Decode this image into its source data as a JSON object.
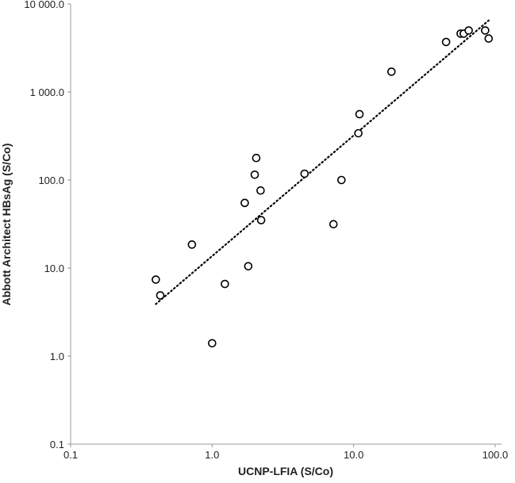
{
  "chart_data": {
    "type": "scatter",
    "title": "",
    "xlabel": "UCNP-LFIA (S/Co)",
    "ylabel": "Abbott Architect HBsAg (S/Co)",
    "x_scale": "log",
    "y_scale": "log",
    "xlim": [
      0.1,
      100.0
    ],
    "ylim": [
      0.1,
      10000.0
    ],
    "x_ticks": [
      0.1,
      1.0,
      10.0,
      100.0
    ],
    "x_tick_labels": [
      "0.1",
      "1.0",
      "10.0",
      "100.0"
    ],
    "y_ticks": [
      0.1,
      1.0,
      10.0,
      100.0,
      1000.0,
      10000.0
    ],
    "y_tick_labels": [
      "0.1",
      "1.0",
      "10.0",
      "100.0",
      "1 000.0",
      "10 000.0"
    ],
    "grid": false,
    "legend": "none",
    "marker": "open-circle",
    "marker_color": "#000000",
    "trendline": {
      "style": "dotted",
      "color": "#000000",
      "x": [
        0.4,
        90.0
      ],
      "y": [
        3.9,
        6500.0
      ]
    },
    "points": [
      {
        "x": 0.4,
        "y": 7.4
      },
      {
        "x": 0.43,
        "y": 4.9
      },
      {
        "x": 0.72,
        "y": 18.5
      },
      {
        "x": 1.0,
        "y": 1.4
      },
      {
        "x": 1.23,
        "y": 6.6
      },
      {
        "x": 1.7,
        "y": 55.0
      },
      {
        "x": 1.8,
        "y": 10.5
      },
      {
        "x": 2.0,
        "y": 115.0
      },
      {
        "x": 2.05,
        "y": 178.0
      },
      {
        "x": 2.2,
        "y": 76.0
      },
      {
        "x": 2.22,
        "y": 35.0
      },
      {
        "x": 4.5,
        "y": 118.0
      },
      {
        "x": 7.2,
        "y": 31.5
      },
      {
        "x": 8.2,
        "y": 100.0
      },
      {
        "x": 10.8,
        "y": 340.0
      },
      {
        "x": 11.0,
        "y": 560.0
      },
      {
        "x": 18.5,
        "y": 1700.0
      },
      {
        "x": 45.0,
        "y": 3700.0
      },
      {
        "x": 57.0,
        "y": 4600.0
      },
      {
        "x": 60.0,
        "y": 4600.0
      },
      {
        "x": 65.0,
        "y": 5000.0
      },
      {
        "x": 85.0,
        "y": 5000.0
      },
      {
        "x": 90.0,
        "y": 4050.0
      }
    ]
  }
}
